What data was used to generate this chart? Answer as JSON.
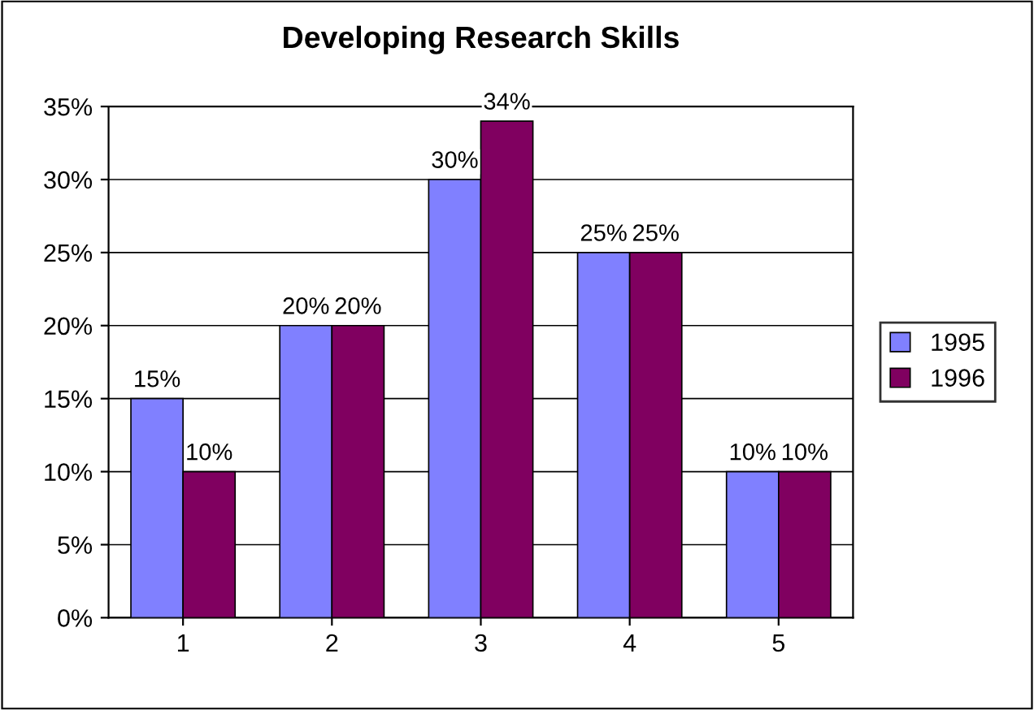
{
  "chart_data": {
    "type": "bar",
    "title": "Developing Research Skills",
    "categories": [
      "1",
      "2",
      "3",
      "4",
      "5"
    ],
    "series": [
      {
        "name": "1995",
        "color": "#8080ff",
        "values": [
          15,
          20,
          30,
          25,
          10
        ],
        "value_labels": [
          "15%",
          "20%",
          "30%",
          "25%",
          "10%"
        ]
      },
      {
        "name": "1996",
        "color": "#800060",
        "values": [
          10,
          20,
          34,
          25,
          10
        ],
        "value_labels": [
          "10%",
          "20%",
          "34%",
          "25%",
          "10%"
        ]
      }
    ],
    "ylim": [
      0,
      35
    ],
    "yticks": [
      {
        "value": 0,
        "label": "0%"
      },
      {
        "value": 5,
        "label": "5%"
      },
      {
        "value": 10,
        "label": "10%"
      },
      {
        "value": 15,
        "label": "15%"
      },
      {
        "value": 20,
        "label": "20%"
      },
      {
        "value": 25,
        "label": "25%"
      },
      {
        "value": 30,
        "label": "30%"
      },
      {
        "value": 35,
        "label": "35%"
      }
    ],
    "grid": "y",
    "legend": "right"
  }
}
